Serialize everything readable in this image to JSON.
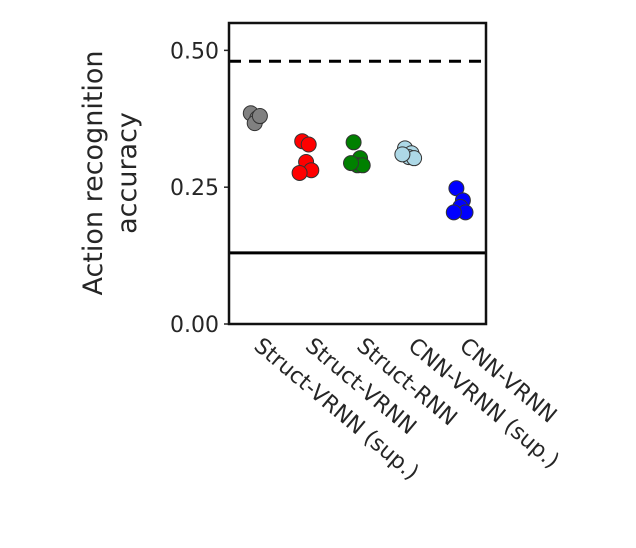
{
  "chart_data": {
    "type": "strip",
    "ylabel": "Action recognition accuracy",
    "categories": [
      "Struct-VRNN (sup.)",
      "Struct-VRNN",
      "Struct-RNN",
      "CNN-VRNN (sup.)",
      "CNN-VRNN"
    ],
    "series": [
      {
        "color": "#808080",
        "values": [
          0.385,
          0.376,
          0.367,
          0.38
        ]
      },
      {
        "color": "#ff0000",
        "values": [
          0.334,
          0.328,
          0.296,
          0.281,
          0.276
        ]
      },
      {
        "color": "#008000",
        "values": [
          0.332,
          0.303,
          0.29,
          0.29,
          0.294
        ]
      },
      {
        "color": "#add8e6",
        "values": [
          0.321,
          0.312,
          0.305,
          0.303,
          0.31
        ]
      },
      {
        "color": "#0000ff",
        "values": [
          0.248,
          0.226,
          0.214,
          0.204,
          0.204
        ]
      }
    ],
    "reference_lines": [
      {
        "value": 0.48,
        "style": "dashed"
      },
      {
        "value": 0.13,
        "style": "solid"
      }
    ],
    "ylim": [
      0,
      0.55
    ],
    "yticks": [
      {
        "value": 0,
        "label": "0.00"
      },
      {
        "value": 0.25,
        "label": "0.25"
      },
      {
        "value": 0.5,
        "label": "0.50"
      }
    ]
  }
}
